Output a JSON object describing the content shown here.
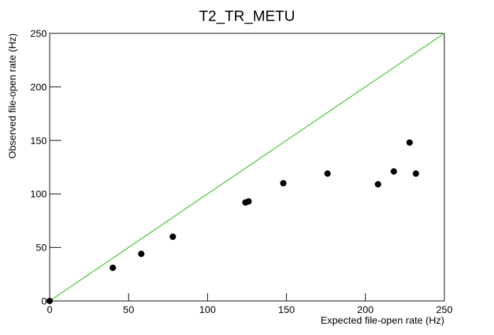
{
  "chart_data": {
    "type": "scatter",
    "title": "T2_TR_METU",
    "x_label": "Expected file-open rate (Hz)",
    "y_label": "Observed file-open rate (Hz)",
    "series": [
      {
        "color": "#000000",
        "x": [
          0,
          40,
          58,
          78,
          124,
          126,
          148,
          176,
          208,
          218,
          228,
          232
        ],
        "values": [
          0,
          31,
          44,
          60,
          92,
          93,
          110,
          119,
          109,
          121,
          148,
          119
        ]
      }
    ],
    "reference_line": {
      "color": "#5fcc4f",
      "x": [
        0,
        250
      ],
      "y": [
        0,
        250
      ]
    },
    "xlim": [
      0,
      250
    ],
    "ylim": [
      0,
      250
    ],
    "xticks": [
      0,
      50,
      100,
      150,
      200,
      250
    ],
    "yticks": [
      0,
      50,
      100,
      150,
      200,
      250
    ]
  }
}
